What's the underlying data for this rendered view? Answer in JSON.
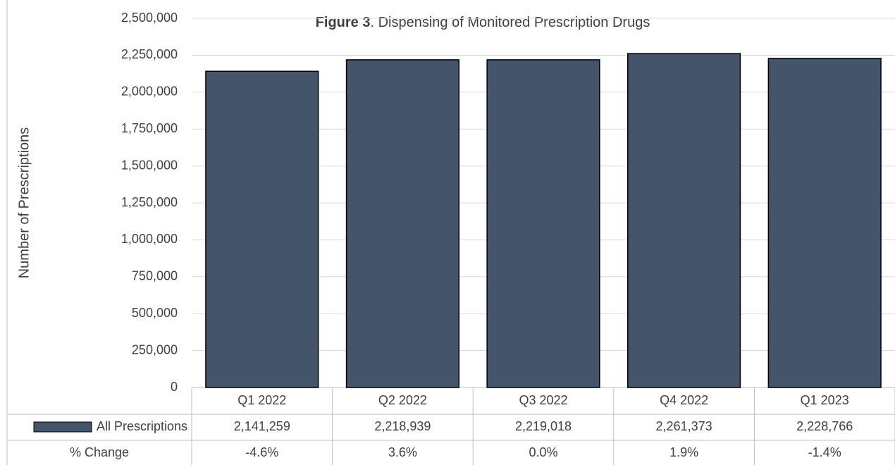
{
  "chart_data": {
    "type": "bar",
    "title": [
      "Figure 3",
      ". Dispensing of Monitored Prescription Drugs"
    ],
    "y_label": "Number of Prescriptions",
    "categories": [
      "Q1 2022",
      "Q2 2022",
      "Q3 2022",
      "Q4 2022",
      "Q1 2023"
    ],
    "series": [
      {
        "name": "All Prescriptions",
        "color": "#44546a",
        "values": [
          2141259,
          2218939,
          2219018,
          2261373,
          2228766
        ],
        "value_labels": [
          "2,141,259",
          "2,218,939",
          "2,219,018",
          "2,261,373",
          "2,228,766"
        ]
      }
    ],
    "table_rows": [
      {
        "name": "% Change",
        "values": [
          "-4.6%",
          "3.6%",
          "0.0%",
          "1.9%",
          "-1.4%"
        ]
      }
    ],
    "ylim": [
      0,
      2500000
    ],
    "yticks": [
      0,
      {
        "value": 250000,
        "label": "250,000"
      },
      {
        "value": 500000,
        "label": "500,000"
      },
      {
        "value": 750000,
        "label": "750,000"
      },
      {
        "value": 1000000,
        "label": "1,000,000"
      },
      {
        "value": 1250000,
        "label": "1,250,000"
      },
      {
        "value": 1500000,
        "label": "1,500,000"
      },
      {
        "value": 1750000,
        "label": "1,750,000"
      },
      {
        "value": 2000000,
        "label": "2,000,000"
      },
      {
        "value": 2250000,
        "label": "2,250,000"
      },
      {
        "value": 2500000,
        "label": "2,500,000"
      }
    ],
    "grid": true
  }
}
